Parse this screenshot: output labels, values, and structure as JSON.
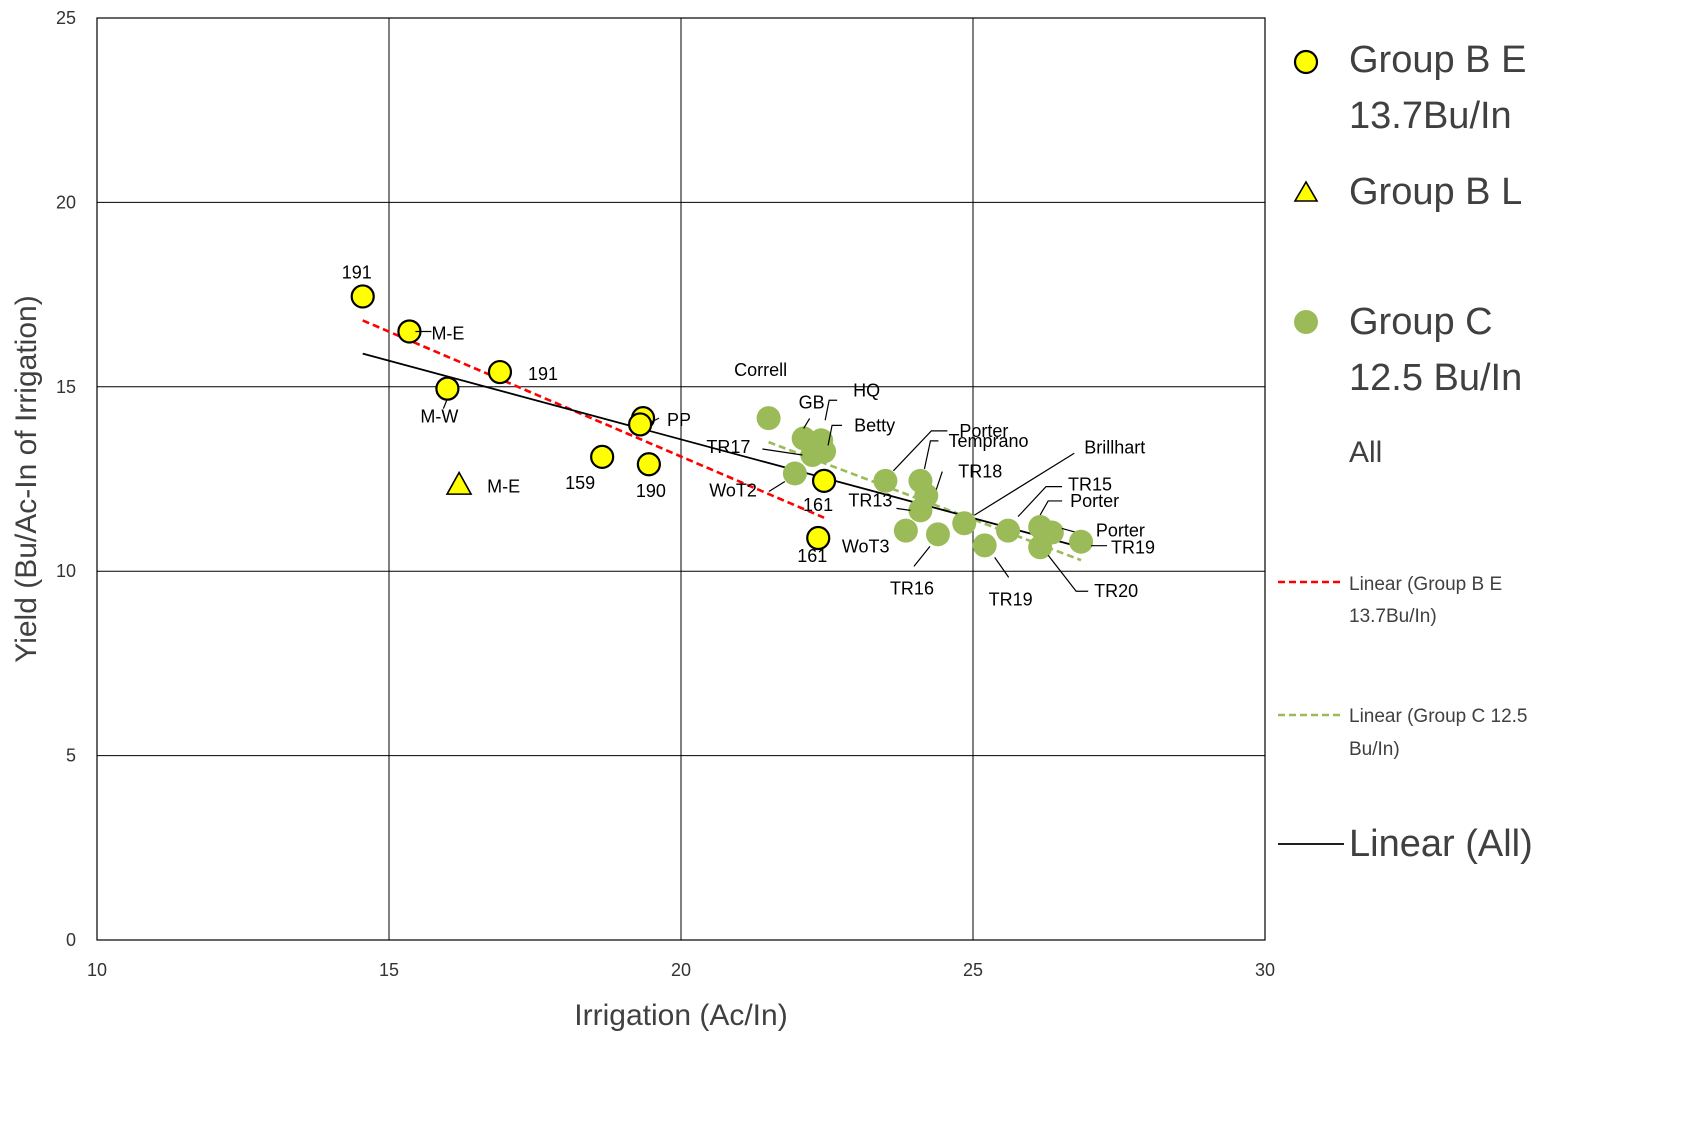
{
  "chart_data": {
    "type": "scatter",
    "xlabel": "Irrigation (Ac/In)",
    "ylabel": "Yield (Bu/Ac-In of Irrigation)",
    "xlim": [
      10,
      30
    ],
    "ylim": [
      0,
      25
    ],
    "x_ticks": [
      "10",
      "15",
      "20",
      "25",
      "30"
    ],
    "y_ticks": [
      "0",
      "5",
      "10",
      "15",
      "20",
      "25"
    ],
    "grid": true,
    "legend_position": "right",
    "series": [
      {
        "name": "Group B E 13.7Bu/In",
        "marker": "circle",
        "color": "#ffff00",
        "points": [
          {
            "x": 14.55,
            "y": 17.45,
            "label": "191"
          },
          {
            "x": 15.35,
            "y": 16.5,
            "label": "M-E"
          },
          {
            "x": 16.9,
            "y": 15.4,
            "label": "191"
          },
          {
            "x": 16.0,
            "y": 14.95,
            "label": "M-W"
          },
          {
            "x": 19.35,
            "y": 14.15,
            "label": "PP"
          },
          {
            "x": 19.3,
            "y": 13.98,
            "label": ""
          },
          {
            "x": 18.65,
            "y": 13.1,
            "label": "159"
          },
          {
            "x": 19.45,
            "y": 12.9,
            "label": "190"
          },
          {
            "x": 22.45,
            "y": 12.45,
            "label": "161"
          },
          {
            "x": 22.35,
            "y": 10.9,
            "label": "161"
          }
        ]
      },
      {
        "name": "Group B L",
        "marker": "triangle",
        "color": "#ffff00",
        "points": [
          {
            "x": 16.2,
            "y": 12.35,
            "label": "M-E"
          }
        ]
      },
      {
        "name": "Group C 12.5 Bu/In",
        "marker": "circle",
        "color": "#9bbb59",
        "points": [
          {
            "x": 21.5,
            "y": 14.15,
            "label": "Correll"
          },
          {
            "x": 22.1,
            "y": 13.6,
            "label": "GB"
          },
          {
            "x": 22.4,
            "y": 13.55,
            "label": "HQ"
          },
          {
            "x": 22.45,
            "y": 13.25,
            "label": "Betty"
          },
          {
            "x": 22.25,
            "y": 13.15,
            "label": "TR17"
          },
          {
            "x": 21.95,
            "y": 12.65,
            "label": "WoT2"
          },
          {
            "x": 23.5,
            "y": 12.45,
            "label": "Porter"
          },
          {
            "x": 24.1,
            "y": 12.45,
            "label": "Temprano"
          },
          {
            "x": 24.2,
            "y": 12.05,
            "label": "TR18"
          },
          {
            "x": 24.1,
            "y": 11.65,
            "label": "TR13"
          },
          {
            "x": 23.85,
            "y": 11.1,
            "label": "WoT3"
          },
          {
            "x": 24.4,
            "y": 11.0,
            "label": "TR16"
          },
          {
            "x": 24.85,
            "y": 11.3,
            "label": "Brillhart"
          },
          {
            "x": 25.2,
            "y": 10.7,
            "label": "TR19"
          },
          {
            "x": 25.6,
            "y": 11.1,
            "label": "TR15"
          },
          {
            "x": 26.15,
            "y": 11.2,
            "label": "Porter"
          },
          {
            "x": 26.35,
            "y": 11.05,
            "label": "Porter"
          },
          {
            "x": 26.15,
            "y": 10.65,
            "label": "TR20"
          },
          {
            "x": 26.85,
            "y": 10.8,
            "label": "TR19"
          }
        ]
      }
    ],
    "trendlines": [
      {
        "name": "Linear (Group B E 13.7Bu/In)",
        "color": "#ff0000",
        "style": "dashed",
        "x": [
          14.55,
          22.45
        ],
        "y": [
          16.8,
          11.45
        ]
      },
      {
        "name": "Linear (Group C  12.5 Bu/In)",
        "color": "#9bbb59",
        "style": "dashed",
        "x": [
          21.5,
          26.85
        ],
        "y": [
          13.5,
          10.3
        ]
      },
      {
        "name": "Linear (All)",
        "color": "#000000",
        "style": "solid",
        "x": [
          14.55,
          26.85
        ],
        "y": [
          15.9,
          10.65
        ]
      }
    ],
    "legend": [
      {
        "key": "gbe",
        "lines": [
          "Group B E",
          "13.7Bu/In"
        ],
        "symbol": "circle-yellow"
      },
      {
        "key": "gbl",
        "lines": [
          "Group B L"
        ],
        "symbol": "triangle-yellow"
      },
      {
        "key": "gc",
        "lines": [
          "Group C",
          "12.5 Bu/In"
        ],
        "symbol": "dot-green"
      },
      {
        "key": "all",
        "lines": [
          "All"
        ],
        "symbol": "none"
      },
      {
        "key": "lin_gbe",
        "lines": [
          "Linear (Group B E",
          "13.7Bu/In)"
        ],
        "symbol": "line-red-dashed"
      },
      {
        "key": "lin_gc",
        "lines": [
          "Linear (Group C  12.5",
          "Bu/In)"
        ],
        "symbol": "line-green-dashed"
      },
      {
        "key": "lin_all",
        "lines": [
          "Linear (All)"
        ],
        "symbol": "line-black"
      }
    ]
  }
}
